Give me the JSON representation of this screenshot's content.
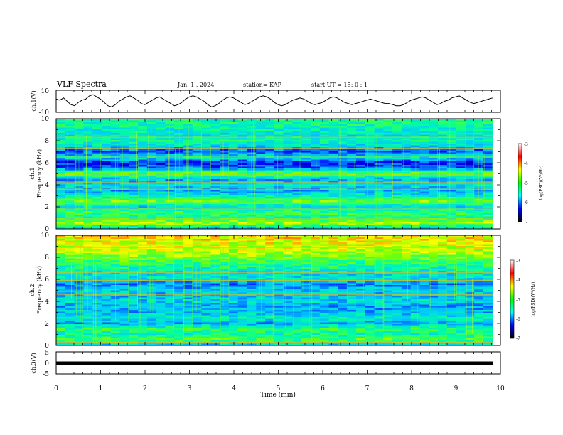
{
  "header": {
    "title": "VLF Spectra",
    "date": "Jan. 1 , 2024",
    "station": "station= KAP",
    "start": "start UT = 15: 0 : 1"
  },
  "colors": {
    "trace": "#000000",
    "colormap": [
      "#ffffff",
      "#ff0000",
      "#ffff00",
      "#00ff00",
      "#00ffff",
      "#0000ff",
      "#000000"
    ]
  },
  "chart_data": [
    {
      "type": "line",
      "panel": "ch1-waveform",
      "ylabel": "ch.1(V)",
      "ylim": [
        -10,
        10
      ],
      "ytick_labels": [
        "10",
        "-10"
      ],
      "xlim": [
        0,
        10
      ],
      "series": [
        {
          "values": [
            2,
            1,
            3,
            0,
            -3,
            -4,
            -1,
            1,
            2,
            5,
            6,
            4,
            2,
            -1,
            -4,
            -5,
            -3,
            0,
            2,
            4,
            5,
            3,
            1,
            -2,
            -3,
            -1,
            1,
            3,
            4,
            2,
            0,
            -2,
            -4,
            -3,
            -1,
            2,
            4,
            5,
            4,
            2,
            0,
            -3,
            -5,
            -4,
            -2,
            1,
            3,
            4,
            3,
            1,
            -1,
            -3,
            -2,
            0,
            2,
            4,
            5,
            4,
            2,
            -1,
            -3,
            -4,
            -3,
            -1,
            1,
            2,
            3,
            2,
            0,
            -2,
            -3,
            -2,
            -1,
            1,
            3,
            4,
            3,
            1,
            -1,
            -2,
            -3,
            -2,
            -1,
            0,
            1,
            2,
            1,
            0,
            -1,
            -2,
            -2,
            -3,
            -4,
            -4,
            -3,
            -1,
            1,
            2,
            3,
            4,
            3,
            1,
            -1,
            -3,
            -2,
            0,
            1,
            3,
            4,
            5,
            3,
            1,
            -1,
            -2,
            -1,
            0,
            1,
            2,
            3
          ]
        }
      ]
    },
    {
      "type": "heatmap",
      "panel": "ch1-spectrogram",
      "channel_label": "ch.1",
      "ylabel": "Frequency (kHz)",
      "ylim": [
        0,
        10
      ],
      "ytick_labels": [
        "0",
        "2",
        "4",
        "6",
        "8",
        "10"
      ],
      "xlim": [
        0,
        10
      ],
      "colorbar": {
        "label": "log(PSD)(V²/Hz)",
        "range": [
          -7,
          -3
        ],
        "tick_labels": [
          "-3",
          "-4",
          "-5",
          "-6",
          "-7"
        ]
      },
      "profile": [
        [
          0.0,
          -5.8
        ],
        [
          0.5,
          -4.4
        ],
        [
          1.0,
          -5.2
        ],
        [
          1.5,
          -5.0
        ],
        [
          2.0,
          -5.6
        ],
        [
          2.5,
          -4.7
        ],
        [
          3.0,
          -5.4
        ],
        [
          3.5,
          -5.9
        ],
        [
          4.0,
          -5.5
        ],
        [
          4.5,
          -5.9
        ],
        [
          5.0,
          -4.7
        ],
        [
          5.5,
          -6.1
        ],
        [
          6.0,
          -6.5
        ],
        [
          6.5,
          -5.4
        ],
        [
          7.0,
          -6.3
        ],
        [
          7.5,
          -5.6
        ],
        [
          8.0,
          -5.3
        ],
        [
          8.5,
          -5.5
        ],
        [
          9.0,
          -5.4
        ],
        [
          9.5,
          -5.2
        ],
        [
          10.0,
          -5.2
        ]
      ],
      "lines_khz": [
        0.9,
        1.8,
        2.3,
        3.6,
        4.2,
        4.9,
        5.2,
        6.6,
        7.3,
        8.3
      ]
    },
    {
      "type": "heatmap",
      "panel": "ch2-spectrogram",
      "channel_label": "ch.2",
      "ylabel": "Frequency (kHz)",
      "ylim": [
        0,
        10
      ],
      "ytick_labels": [
        "0",
        "2",
        "4",
        "6",
        "8",
        "10"
      ],
      "xlim": [
        0,
        10
      ],
      "colorbar": {
        "label": "log(PSD)(V²/Hz)",
        "range": [
          -7,
          -3
        ],
        "tick_labels": [
          "-3",
          "-4",
          "-5",
          "-6",
          "-7"
        ]
      },
      "profile": [
        [
          0.0,
          -5.8
        ],
        [
          0.5,
          -4.8
        ],
        [
          1.0,
          -5.3
        ],
        [
          1.5,
          -5.0
        ],
        [
          2.0,
          -5.9
        ],
        [
          2.5,
          -5.4
        ],
        [
          3.0,
          -5.8
        ],
        [
          3.5,
          -5.9
        ],
        [
          4.0,
          -5.6
        ],
        [
          4.5,
          -5.8
        ],
        [
          5.0,
          -5.6
        ],
        [
          5.5,
          -6.1
        ],
        [
          6.0,
          -5.5
        ],
        [
          6.5,
          -5.6
        ],
        [
          7.0,
          -5.3
        ],
        [
          7.5,
          -5.0
        ],
        [
          8.0,
          -4.6
        ],
        [
          8.5,
          -4.4
        ],
        [
          9.0,
          -4.3
        ],
        [
          9.5,
          -4.2
        ],
        [
          10.0,
          -4.1
        ]
      ],
      "lines_khz": [
        0.3,
        1.8,
        3.4,
        4.6,
        5.9,
        6.6,
        8.9
      ]
    },
    {
      "type": "line",
      "panel": "ch3-waveform",
      "ylabel": "ch.3(V)",
      "ylim": [
        -5,
        5
      ],
      "ytick_labels": [
        "5",
        "0",
        "-5"
      ],
      "xlim": [
        0,
        10
      ],
      "series": [
        {
          "values": [
            -0.5,
            -0.5
          ]
        }
      ]
    }
  ],
  "xaxis": {
    "label": "Time (min)",
    "tick_labels": [
      "0",
      "1",
      "2",
      "3",
      "4",
      "5",
      "6",
      "7",
      "8",
      "9",
      "10"
    ],
    "data_end": 9.82
  }
}
